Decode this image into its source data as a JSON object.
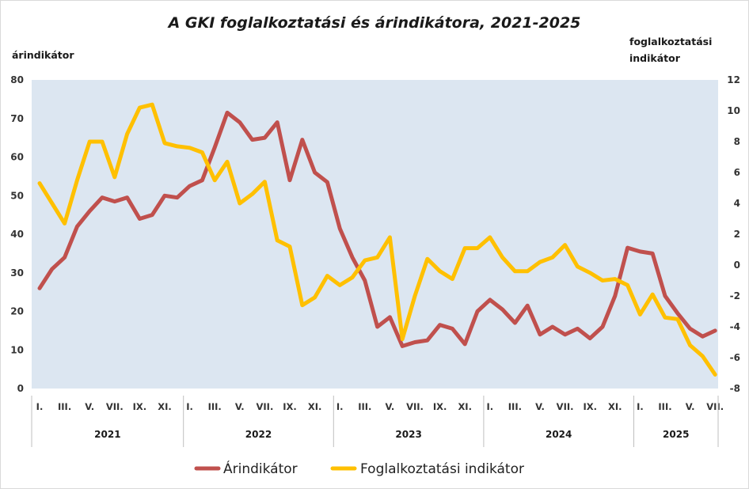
{
  "chart_data": {
    "type": "line",
    "title": "A GKI foglalkoztatási és árindikátora, 2021-2025",
    "left_axis_title": "árindikátor",
    "right_axis_title": [
      "foglalkoztatási",
      "indikátor"
    ],
    "ylim_left": [
      0,
      80
    ],
    "yticks_left": [
      "0",
      "10",
      "20",
      "30",
      "40",
      "50",
      "60",
      "70",
      "80"
    ],
    "ylim_right": [
      -8,
      12
    ],
    "yticks_right": [
      "-8",
      "-6",
      "-4",
      "-2",
      "0",
      "2",
      "4",
      "6",
      "8",
      "10",
      "12"
    ],
    "grid": false,
    "plot_background": "#dce6f1",
    "legend_position": "bottom",
    "years": [
      "2021",
      "2022",
      "2023",
      "2024",
      "2025"
    ],
    "month_labels": [
      "I.",
      "",
      "III.",
      "",
      "V.",
      "",
      "VII.",
      "",
      "IX.",
      "",
      "XI.",
      ""
    ],
    "month_labels_2025": [
      "I.",
      "",
      "III.",
      "",
      "V.",
      "",
      "VII."
    ],
    "series": [
      {
        "name": "Árindikátor",
        "axis": "left",
        "color": "#c0504d",
        "values": [
          26,
          31,
          34,
          42,
          46,
          49.5,
          48.5,
          49.5,
          44,
          45,
          50,
          49.5,
          52.5,
          54,
          62.5,
          71.5,
          69,
          64.5,
          65,
          69,
          54,
          64.5,
          56,
          53.5,
          41.5,
          34,
          28,
          16,
          18.5,
          11,
          12,
          12.5,
          16.5,
          15.5,
          11.5,
          20,
          23,
          20.5,
          17,
          21.5,
          14,
          16,
          14,
          15.5,
          13,
          16,
          24,
          36.5,
          35.5,
          35,
          24,
          19.5,
          15.5,
          13.5,
          15
        ]
      },
      {
        "name": "Foglalkoztatási indikátor",
        "axis": "right",
        "color": "#ffc000",
        "values": [
          5.3,
          4,
          2.7,
          5.5,
          8,
          8,
          5.7,
          8.5,
          10.2,
          10.4,
          7.9,
          7.7,
          7.6,
          7.3,
          5.5,
          6.7,
          4,
          4.6,
          5.4,
          1.6,
          1.2,
          -2.6,
          -2.1,
          -0.7,
          -1.3,
          -0.8,
          0.3,
          0.5,
          1.8,
          -4.8,
          -2,
          0.4,
          -0.4,
          -0.9,
          1.1,
          1.1,
          1.8,
          0.5,
          -0.4,
          -0.4,
          0.2,
          0.5,
          1.3,
          -0.1,
          -0.5,
          -1,
          -0.9,
          -1.3,
          -3.2,
          -1.9,
          -3.4,
          -3.5,
          -5.2,
          -5.9,
          -7.1
        ]
      }
    ]
  }
}
